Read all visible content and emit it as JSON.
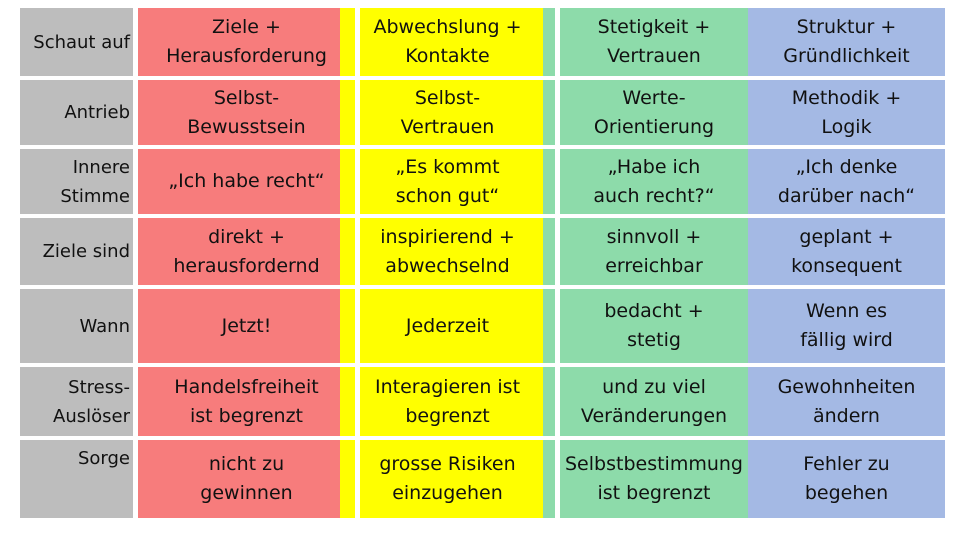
{
  "colors": {
    "label_column": "#bdbdbd",
    "red_type": "#f77c7c",
    "yellow_type": "#ffff00",
    "green_type": "#8ddbaa",
    "blue_type": "#a4b9e4"
  },
  "rows": [
    {
      "label": "Schaut auf",
      "red": "Ziele +\nHerausforderung",
      "yellow": "Abwechslung +\nKontakte",
      "green": "Stetigkeit +\nVertrauen",
      "blue": "Struktur +\nGründlichkeit"
    },
    {
      "label": "Antrieb",
      "red": "Selbst-\nBewusstsein",
      "yellow": "Selbst-\nVertrauen",
      "green": "Werte-\nOrientierung",
      "blue": "Methodik +\nLogik"
    },
    {
      "label": "Innere\nStimme",
      "red": "„Ich habe recht“",
      "yellow": "„Es kommt\nschon gut“",
      "green": "„Habe ich\nauch recht?“",
      "blue": "„Ich denke\ndarüber nach“"
    },
    {
      "label": "Ziele sind",
      "red": "direkt +\nherausfordernd",
      "yellow": "inspirierend +\nabwechselnd",
      "green": "sinnvoll +\nerreichbar",
      "blue": "geplant +\nkonsequent"
    },
    {
      "label": "Wann",
      "red": "Jetzt!",
      "yellow": "Jederzeit",
      "green": "bedacht +\nstetig",
      "blue": "Wenn es\nfällig wird"
    },
    {
      "label": "Stress-\nAuslöser",
      "red": "Handelsfreiheit\nist begrenzt",
      "yellow": "Interagieren ist\nbegrenzt",
      "green": "und zu viel\nVeränderungen",
      "blue": "Gewohnheiten\nändern"
    },
    {
      "label": "Sorge",
      "red": "nicht zu\ngewinnen",
      "yellow": "grosse Risiken\neinzugehen",
      "green": "Selbstbestimmung\nist begrenzt",
      "blue": "Fehler zu\nbegehen"
    }
  ]
}
